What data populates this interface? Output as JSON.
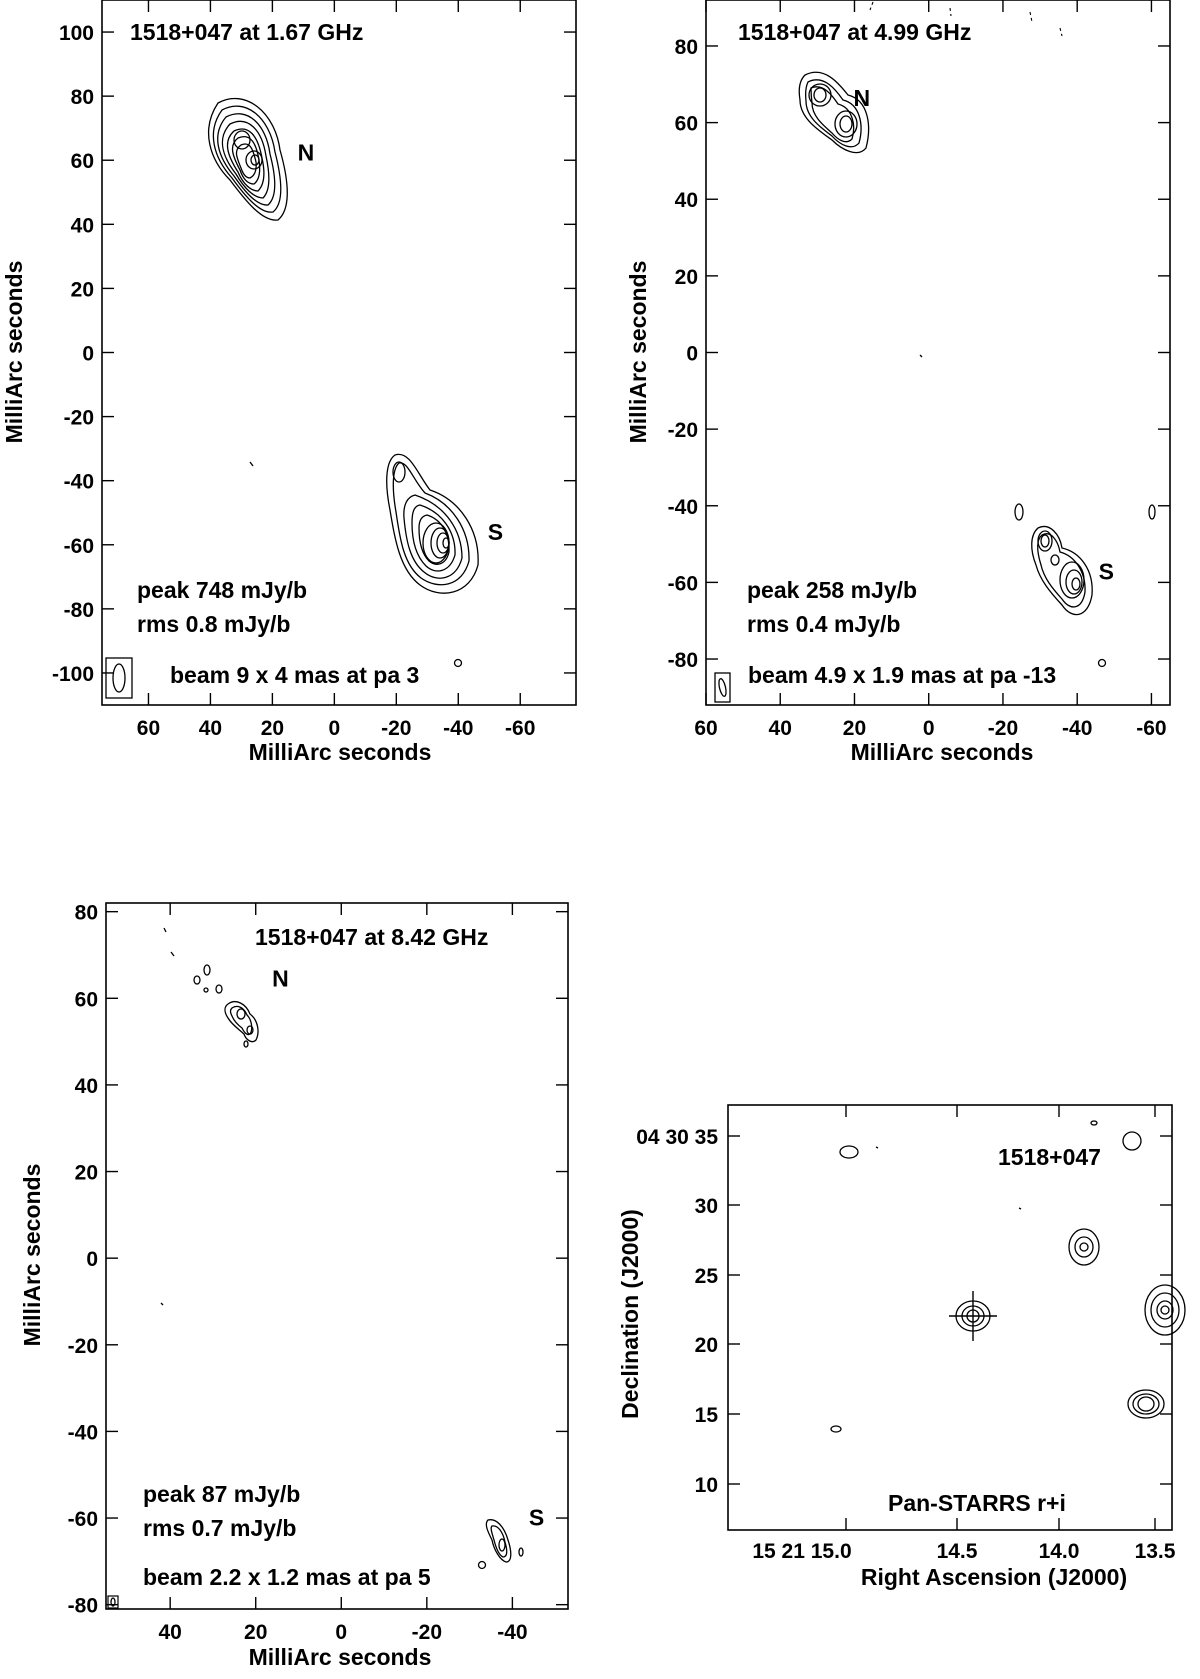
{
  "panels": [
    {
      "id": "p167",
      "title": "1518+047  at 1.67 GHz",
      "xlabel": "MilliArc seconds",
      "ylabel": "MilliArc seconds",
      "xlim": [
        75,
        -78
      ],
      "ylim": [
        -110,
        110
      ],
      "xticks": [
        60,
        40,
        20,
        0,
        -20,
        -40,
        -60
      ],
      "yticks": [
        100,
        80,
        60,
        40,
        20,
        0,
        -20,
        -40,
        -60,
        -80,
        -100
      ],
      "components": [
        {
          "label": "N",
          "x": 28,
          "y": 63
        },
        {
          "label": "S",
          "x": -35,
          "y": -57
        }
      ],
      "peak_text": "peak 748 mJy/b",
      "rms_text": "rms 0.8 mJy/b",
      "beam_text": "beam 9 x 4 mas at pa 3",
      "beam_major_mas": 9,
      "beam_minor_mas": 4,
      "beam_pa_deg": 3
    },
    {
      "id": "p499",
      "title": "1518+047  at 4.99 GHz",
      "xlabel": "MilliArc seconds",
      "ylabel": "MilliArc seconds",
      "xlim": [
        60,
        -65
      ],
      "ylim": [
        -92,
        92
      ],
      "xticks": [
        60,
        40,
        20,
        0,
        -20,
        -40,
        -60
      ],
      "yticks": [
        80,
        60,
        40,
        20,
        0,
        -20,
        -40,
        -60,
        -80
      ],
      "components": [
        {
          "label": "N",
          "x": 27,
          "y": 63
        },
        {
          "label": "S",
          "x": -35,
          "y": -58
        }
      ],
      "peak_text": "peak 258 mJy/b",
      "rms_text": "rms 0.4 mJy/b",
      "beam_text": "beam 4.9 x 1.9 mas at pa -13",
      "beam_major_mas": 4.9,
      "beam_minor_mas": 1.9,
      "beam_pa_deg": -13
    },
    {
      "id": "p842",
      "title": "1518+047  at 8.42 GHz",
      "xlabel": "MilliArc seconds",
      "ylabel": "MilliArc seconds",
      "xlim": [
        55,
        -53
      ],
      "ylim": [
        -81,
        82
      ],
      "xticks": [
        40,
        20,
        0,
        -20,
        -40
      ],
      "yticks": [
        80,
        60,
        40,
        20,
        0,
        -20,
        -40,
        -60,
        -80
      ],
      "components": [
        {
          "label": "N",
          "x": 22,
          "y": 57
        },
        {
          "label": "S",
          "x": -38,
          "y": -64
        }
      ],
      "peak_text": "peak 87 mJy/b",
      "rms_text": "rms 0.7 mJy/b",
      "beam_text": "beam 2.2 x 1.2 mas at pa 5",
      "beam_major_mas": 2.2,
      "beam_minor_mas": 1.2,
      "beam_pa_deg": 5
    },
    {
      "id": "pps",
      "title": "1518+047",
      "caption": "Pan-STARRS r+i",
      "xlabel": "Right Ascension (J2000)",
      "ylabel": "Declination (J2000)",
      "xtick_labels": [
        "15 21 15.0",
        "14.5",
        "14.0",
        "13.5"
      ],
      "ytick_labels": [
        "04 30 35",
        "30",
        "25",
        "20",
        "15",
        "10"
      ]
    }
  ]
}
